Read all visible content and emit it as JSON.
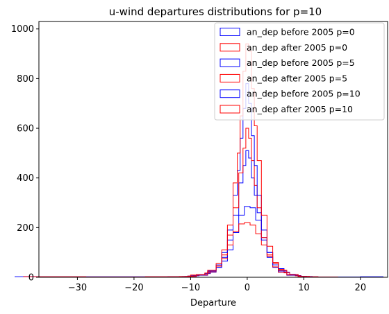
{
  "chart_data": {
    "type": "histogram",
    "title": "u-wind departures distributions for p=10",
    "xlabel": "Departure",
    "ylabel": "",
    "xlim": [
      -36.8,
      24.8
    ],
    "ylim": [
      0,
      1030
    ],
    "x_ticks": [
      -30,
      -20,
      -10,
      0,
      10,
      20
    ],
    "x_tick_labels": [
      "−30",
      "−20",
      "−10",
      "0",
      "10",
      "20"
    ],
    "y_ticks": [
      0,
      200,
      400,
      600,
      800,
      1000
    ],
    "y_tick_labels": [
      "0",
      "200",
      "400",
      "600",
      "800",
      "1000"
    ],
    "histtype": "step",
    "legend_position": "upper right",
    "grid": false,
    "series": [
      {
        "name": "an_dep before 2005 p=0",
        "color": "#0000ff",
        "x": [
          -33.5,
          -18.5,
          -12,
          -11,
          -10,
          -9,
          -8,
          -7,
          -6,
          -5,
          -4,
          -3,
          -2,
          -1,
          0,
          1,
          2,
          3,
          4,
          5,
          6,
          7,
          8,
          9,
          10,
          11,
          12,
          13,
          18,
          22
        ],
        "y": [
          2,
          2,
          2,
          3,
          5,
          6,
          10,
          15,
          25,
          40,
          65,
          110,
          180,
          250,
          285,
          280,
          230,
          160,
          100,
          60,
          35,
          20,
          12,
          7,
          4,
          3,
          2,
          1,
          1,
          2
        ]
      },
      {
        "name": "an_dep after 2005 p=0",
        "color": "#ff0000",
        "x": [
          -34,
          -23,
          -13,
          -11,
          -10,
          -9,
          -8,
          -7,
          -6,
          -5,
          -4,
          -3,
          -2,
          -1,
          0,
          1,
          2,
          3,
          4,
          5,
          6,
          7,
          8,
          9,
          10,
          11,
          12,
          13,
          15
        ],
        "y": [
          2,
          1,
          2,
          3,
          5,
          7,
          11,
          17,
          28,
          45,
          75,
          130,
          185,
          215,
          220,
          210,
          175,
          130,
          90,
          55,
          32,
          18,
          10,
          6,
          3,
          2,
          2,
          1,
          1
        ]
      },
      {
        "name": "an_dep before 2005 p=5",
        "color": "#0000ff",
        "x": [
          -12,
          -8,
          -6,
          -5,
          -4,
          -3,
          -2,
          -1,
          -0.5,
          0,
          0.5,
          1,
          1.5,
          2,
          3,
          4,
          5,
          6,
          8,
          10
        ],
        "y": [
          2,
          8,
          20,
          40,
          80,
          150,
          250,
          380,
          450,
          510,
          480,
          400,
          330,
          260,
          150,
          80,
          40,
          20,
          8,
          2
        ]
      },
      {
        "name": "an_dep after 2005 p=5",
        "color": "#ff0000",
        "x": [
          -12,
          -8,
          -6,
          -5,
          -4,
          -3,
          -2,
          -1,
          -0.5,
          0,
          0.5,
          1,
          1.5,
          2,
          3,
          4,
          5,
          6,
          8,
          10
        ],
        "y": [
          2,
          9,
          22,
          45,
          90,
          170,
          280,
          420,
          520,
          600,
          560,
          470,
          370,
          280,
          160,
          85,
          42,
          20,
          9,
          3
        ]
      },
      {
        "name": "an_dep before 2005 p=10",
        "color": "#0000ff",
        "x": [
          -10,
          -8,
          -6,
          -5,
          -4,
          -3,
          -2,
          -1.5,
          -1,
          -0.5,
          0,
          0.5,
          1,
          1.5,
          2,
          3,
          4,
          5,
          6,
          8,
          10
        ],
        "y": [
          3,
          10,
          25,
          50,
          100,
          190,
          330,
          430,
          560,
          680,
          780,
          700,
          570,
          450,
          330,
          190,
          100,
          50,
          25,
          10,
          3
        ]
      },
      {
        "name": "an_dep after 2005 p=10",
        "color": "#ff0000",
        "x": [
          -10,
          -8,
          -6,
          -5,
          -4,
          -3,
          -2,
          -1.5,
          -1,
          -0.5,
          0,
          0.5,
          1,
          1.5,
          2,
          3,
          4,
          5,
          6,
          8,
          10
        ],
        "y": [
          3,
          11,
          28,
          55,
          110,
          210,
          380,
          500,
          650,
          830,
          940,
          910,
          760,
          610,
          470,
          250,
          125,
          60,
          28,
          11,
          3
        ]
      }
    ]
  }
}
